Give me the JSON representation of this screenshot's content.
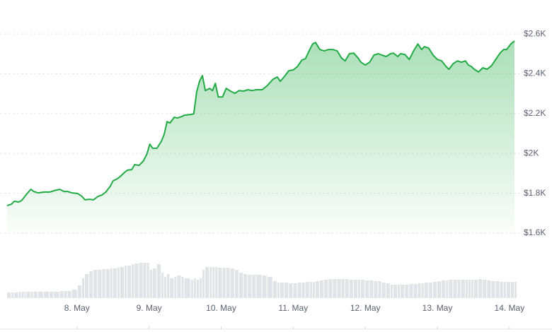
{
  "chart_data": {
    "type": "area",
    "x": [
      0.03,
      0.09,
      0.13,
      0.19,
      0.23,
      0.27,
      0.3,
      0.36,
      0.4,
      0.46,
      0.54,
      0.62,
      0.68,
      0.76,
      0.82,
      0.87,
      0.93,
      1.01,
      1.07,
      1.11,
      1.17,
      1.23,
      1.29,
      1.35,
      1.4,
      1.46,
      1.5,
      1.56,
      1.6,
      1.66,
      1.7,
      1.76,
      1.8,
      1.86,
      1.92,
      1.97,
      2.01,
      2.05,
      2.11,
      2.17,
      2.21,
      2.25,
      2.29,
      2.35,
      2.39,
      2.45,
      2.49,
      2.58,
      2.62,
      2.66,
      2.7,
      2.74,
      2.78,
      2.84,
      2.88,
      2.92,
      2.96,
      3.02,
      3.07,
      3.13,
      3.19,
      3.25,
      3.31,
      3.37,
      3.43,
      3.49,
      3.57,
      3.64,
      3.72,
      3.78,
      3.82,
      3.88,
      3.94,
      4.0,
      4.06,
      4.12,
      4.17,
      4.23,
      4.27,
      4.31,
      4.37,
      4.43,
      4.49,
      4.55,
      4.61,
      4.67,
      4.72,
      4.78,
      4.84,
      4.9,
      4.94,
      5.0,
      5.06,
      5.12,
      5.18,
      5.23,
      5.29,
      5.35,
      5.39,
      5.45,
      5.49,
      5.55,
      5.61,
      5.67,
      5.73,
      5.78,
      5.82,
      5.88,
      5.94,
      6.0,
      6.06,
      6.12,
      6.16,
      6.22,
      6.28,
      6.33,
      6.39,
      6.43,
      6.47,
      6.51,
      6.57,
      6.63,
      6.69,
      6.75,
      6.81,
      6.87,
      6.92,
      6.96,
      7.02,
      7.07
    ],
    "series": [
      {
        "color": "#22ab45",
        "values": [
          1738,
          1745,
          1760,
          1756,
          1763,
          1781,
          1795,
          1820,
          1809,
          1802,
          1806,
          1806,
          1813,
          1820,
          1809,
          1809,
          1802,
          1799,
          1784,
          1767,
          1770,
          1767,
          1784,
          1792,
          1806,
          1834,
          1862,
          1873,
          1884,
          1905,
          1916,
          1919,
          1944,
          1940,
          1962,
          1997,
          2047,
          2026,
          2026,
          2061,
          2096,
          2160,
          2153,
          2182,
          2178,
          2185,
          2192,
          2196,
          2199,
          2309,
          2362,
          2391,
          2316,
          2327,
          2316,
          2352,
          2284,
          2284,
          2327,
          2313,
          2302,
          2316,
          2313,
          2320,
          2316,
          2320,
          2320,
          2341,
          2373,
          2384,
          2362,
          2387,
          2416,
          2419,
          2437,
          2469,
          2476,
          2522,
          2550,
          2557,
          2522,
          2515,
          2522,
          2522,
          2515,
          2479,
          2465,
          2501,
          2504,
          2479,
          2458,
          2444,
          2458,
          2494,
          2501,
          2494,
          2487,
          2501,
          2504,
          2487,
          2501,
          2497,
          2472,
          2515,
          2550,
          2522,
          2536,
          2529,
          2494,
          2472,
          2465,
          2437,
          2423,
          2451,
          2465,
          2458,
          2465,
          2444,
          2437,
          2423,
          2409,
          2430,
          2423,
          2440,
          2472,
          2504,
          2522,
          2522,
          2550,
          2565
        ]
      },
      {
        "color": "#e1e3e6",
        "type": "bar",
        "axis": "y2",
        "values": [
          8,
          8,
          8,
          9,
          9,
          9,
          9,
          9,
          9,
          9,
          9,
          9,
          9,
          10,
          10,
          10,
          12,
          18,
          28,
          34,
          38,
          40,
          40,
          41,
          41,
          42,
          42,
          43,
          44,
          46,
          46,
          48,
          49,
          50,
          50,
          50,
          40,
          42,
          48,
          36,
          30,
          34,
          28,
          30,
          32,
          30,
          28,
          26,
          28,
          26,
          28,
          40,
          44,
          44,
          44,
          44,
          43,
          43,
          43,
          42,
          40,
          36,
          34,
          33,
          33,
          33,
          32,
          30,
          24,
          22,
          22,
          22,
          21,
          21,
          22,
          22,
          23,
          23,
          23,
          24,
          25,
          26,
          27,
          27,
          27,
          27,
          27,
          26,
          26,
          26,
          26,
          25,
          25,
          24,
          24,
          22,
          21,
          19,
          19,
          19,
          19,
          19,
          20,
          20,
          21,
          21,
          22,
          22,
          23,
          24,
          25,
          25,
          26,
          26,
          26,
          26,
          26,
          26,
          26,
          26,
          27,
          26,
          25,
          24,
          24,
          23,
          23,
          23,
          23,
          23
        ]
      }
    ],
    "xlim": [
      0.03,
      7.07
    ],
    "xticks": [
      {
        "value": 1,
        "label": "8. May"
      },
      {
        "value": 2,
        "label": "9. May"
      },
      {
        "value": 3,
        "label": "10. May"
      },
      {
        "value": 4,
        "label": "11. May"
      },
      {
        "value": 5,
        "label": "12. May"
      },
      {
        "value": 6,
        "label": "13. May"
      },
      {
        "value": 7,
        "label": "14. May"
      }
    ],
    "ylim": [
      1600,
      2650
    ],
    "yticks": [
      {
        "value": 1600,
        "label": "$1.6K"
      },
      {
        "value": 1800,
        "label": "$1.8K"
      },
      {
        "value": 2000,
        "label": "$2K"
      },
      {
        "value": 2200,
        "label": "$2.2K"
      },
      {
        "value": 2400,
        "label": "$2.4K"
      },
      {
        "value": 2600,
        "label": "$2.6K"
      }
    ],
    "y2lim": [
      0,
      60
    ],
    "grid": true
  }
}
